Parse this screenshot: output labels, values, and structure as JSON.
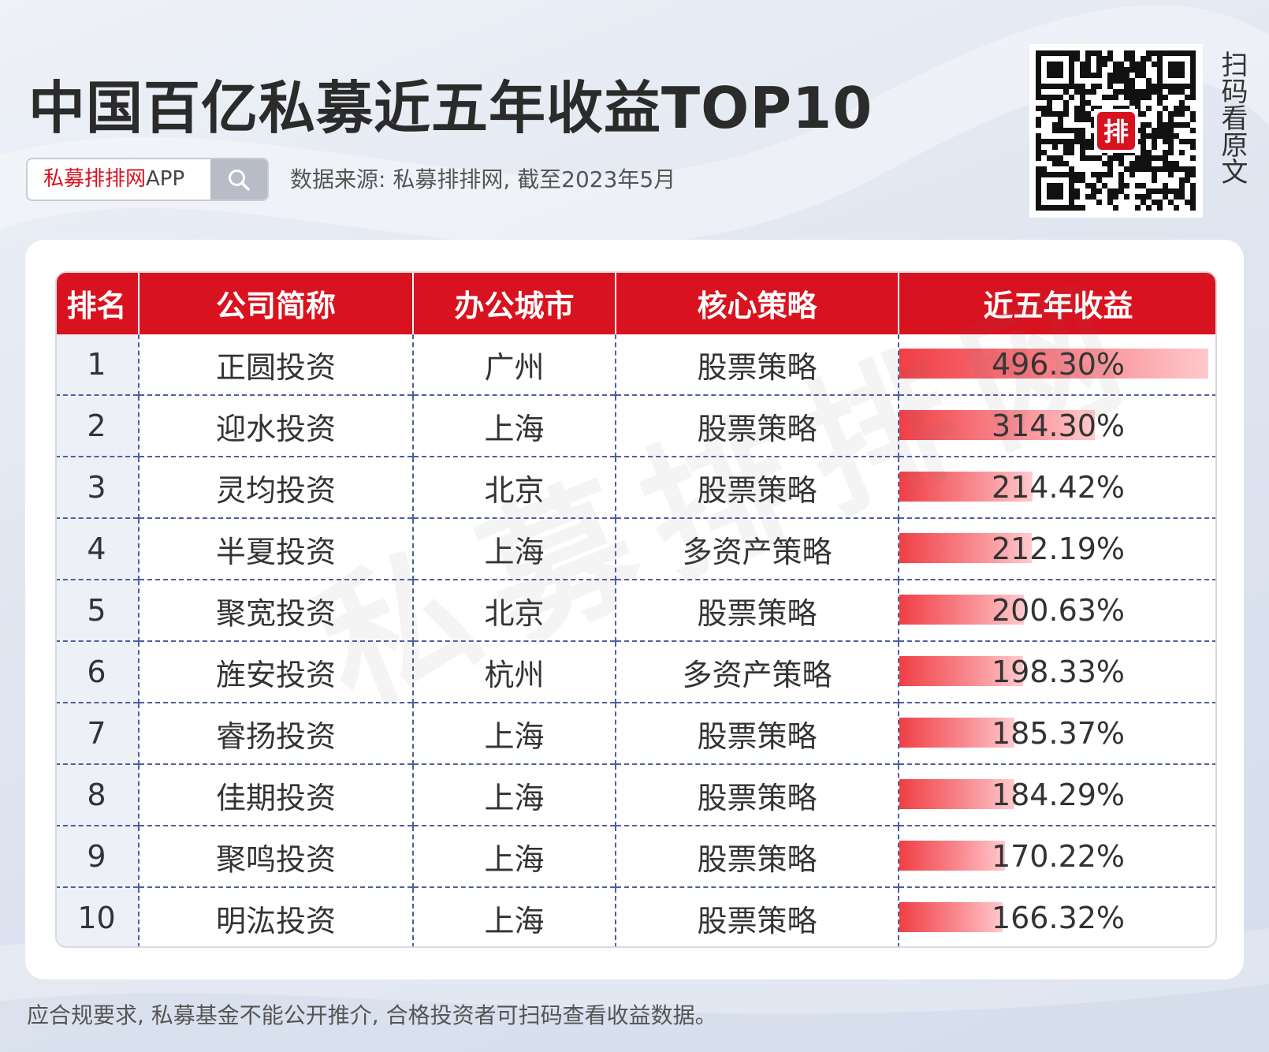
{
  "header": {
    "title": "中国百亿私募近五年收益TOP10",
    "search_label_red": "私募排排网",
    "search_label_gray": "APP",
    "source": "数据来源: 私募排排网, 截至2023年5月",
    "qr_badge": "排",
    "scan_text": "扫码看原文"
  },
  "watermark": "私募排排网",
  "footer": "应合规要求, 私募基金不能公开推介, 合格投资者可扫码查看收益数据。",
  "colors": {
    "accent": "#d9121f",
    "bar_start": "#f03f45",
    "bar_end": "#ffc9cc"
  },
  "chart_data": {
    "type": "table",
    "title": "中国百亿私募近五年收益TOP10",
    "columns": [
      "排名",
      "公司简称",
      "办公城市",
      "核心策略",
      "近五年收益"
    ],
    "rows": [
      {
        "rank": "1",
        "name": "正圆投资",
        "city": "广州",
        "strategy": "股票策略",
        "return_text": "496.30%",
        "return": 496.3
      },
      {
        "rank": "2",
        "name": "迎水投资",
        "city": "上海",
        "strategy": "股票策略",
        "return_text": "314.30%",
        "return": 314.3
      },
      {
        "rank": "3",
        "name": "灵均投资",
        "city": "北京",
        "strategy": "股票策略",
        "return_text": "214.42%",
        "return": 214.42
      },
      {
        "rank": "4",
        "name": "半夏投资",
        "city": "上海",
        "strategy": "多资产策略",
        "return_text": "212.19%",
        "return": 212.19
      },
      {
        "rank": "5",
        "name": "聚宽投资",
        "city": "北京",
        "strategy": "股票策略",
        "return_text": "200.63%",
        "return": 200.63
      },
      {
        "rank": "6",
        "name": "旌安投资",
        "city": "杭州",
        "strategy": "多资产策略",
        "return_text": "198.33%",
        "return": 198.33
      },
      {
        "rank": "7",
        "name": "睿扬投资",
        "city": "上海",
        "strategy": "股票策略",
        "return_text": "185.37%",
        "return": 185.37
      },
      {
        "rank": "8",
        "name": "佳期投资",
        "city": "上海",
        "strategy": "股票策略",
        "return_text": "184.29%",
        "return": 184.29
      },
      {
        "rank": "9",
        "name": "聚鸣投资",
        "city": "上海",
        "strategy": "股票策略",
        "return_text": "170.22%",
        "return": 170.22
      },
      {
        "rank": "10",
        "name": "明汯投资",
        "city": "上海",
        "strategy": "股票策略",
        "return_text": "166.32%",
        "return": 166.32
      }
    ]
  }
}
